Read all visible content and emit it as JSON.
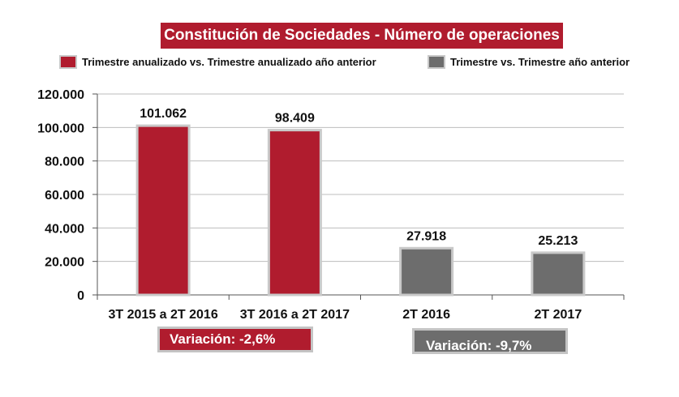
{
  "chart_data": {
    "type": "bar",
    "title": "Constitución de Sociedades - Número de operaciones",
    "categories": [
      "3T 2015 a 2T 2016",
      "3T 2016 a 2T 2017",
      "2T 2016",
      "2T 2017"
    ],
    "values": [
      101062,
      98409,
      27918,
      25213
    ],
    "value_labels": [
      "101.062",
      "98.409",
      "27.918",
      "25.213"
    ],
    "series_index": [
      0,
      0,
      1,
      1
    ],
    "series": [
      {
        "name": "Trimestre anualizado vs. Trimestre anualizado año anterior",
        "color": "#b01c2e"
      },
      {
        "name": "Trimestre vs. Trimestre año anterior",
        "color": "#6d6d6d"
      }
    ],
    "yticks": [
      0,
      20000,
      40000,
      60000,
      80000,
      100000,
      120000
    ],
    "ytick_labels": [
      "0",
      "20.000",
      "40.000",
      "60.000",
      "80.000",
      "100.000",
      "120.000"
    ],
    "ylim": [
      0,
      120000
    ],
    "grid": true,
    "xlabel": "",
    "ylabel": "",
    "annotations": [
      {
        "text": "Variación: -2,6%",
        "color": "#b01c2e"
      },
      {
        "text": "Variación: -9,7%",
        "color": "#6d6d6d"
      }
    ]
  }
}
